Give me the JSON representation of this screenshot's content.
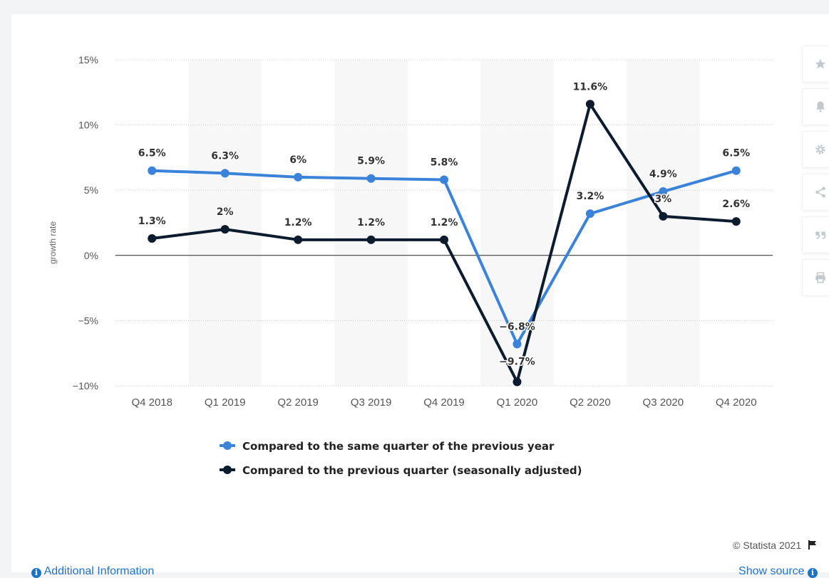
{
  "chart_data": {
    "type": "line",
    "ylabel": "growth rate",
    "ylim": [
      -10,
      15
    ],
    "yticks": [
      -10,
      -5,
      0,
      5,
      10,
      15
    ],
    "ytick_labels": [
      "−10%",
      "−5%",
      "0%",
      "5%",
      "10%",
      "15%"
    ],
    "categories": [
      "Q4 2018",
      "Q1 2019",
      "Q2 2019",
      "Q3 2019",
      "Q4 2019",
      "Q1 2020",
      "Q2 2020",
      "Q3 2020",
      "Q4 2020"
    ],
    "grid": true,
    "legend_position": "bottom",
    "series": [
      {
        "name": "Compared to the same quarter of the previous year",
        "values": [
          6.5,
          6.3,
          6.0,
          5.9,
          5.8,
          -6.8,
          3.2,
          4.9,
          6.5
        ],
        "labels": [
          "6.5%",
          "6.3%",
          "6%",
          "5.9%",
          "5.8%",
          "−6.8%",
          "3.2%",
          "4.9%",
          "6.5%"
        ],
        "color": "#3b82d9"
      },
      {
        "name": "Compared to the previous quarter (seasonally adjusted)",
        "values": [
          1.3,
          2.0,
          1.2,
          1.2,
          1.2,
          -9.7,
          11.6,
          3.0,
          2.6
        ],
        "labels": [
          "1.3%",
          "2%",
          "1.2%",
          "1.2%",
          "1.2%",
          "−9.7%",
          "11.6%",
          "3%",
          "2.6%"
        ],
        "color": "#0d1b2e"
      }
    ]
  },
  "toolbar": {
    "star_icon": "★",
    "bell_icon": "🔔",
    "gear_icon": "⚙",
    "share_icon": "<",
    "quote_icon": "❞",
    "print_icon": "⎙"
  },
  "footer": {
    "credit": "© Statista 2021",
    "additional_info": "Additional Information",
    "show_source": "Show source"
  }
}
